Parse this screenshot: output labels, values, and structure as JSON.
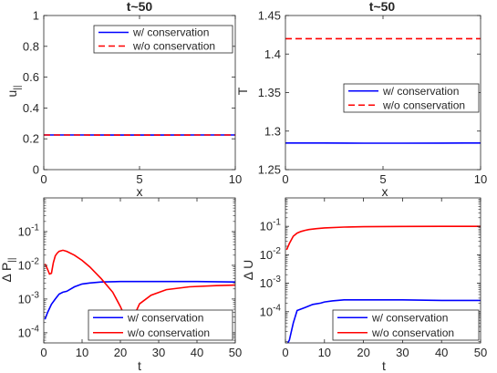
{
  "chart_data": [
    {
      "type": "line",
      "title": "t~50",
      "xlabel": "x",
      "ylabel": "u",
      "ylabel_sub": "||",
      "xlim": [
        0,
        10
      ],
      "ylim": [
        0,
        1
      ],
      "yscale": "linear",
      "xticks": [
        0,
        5,
        10
      ],
      "yticks": [
        0,
        0.2,
        0.4,
        0.6,
        0.8,
        1
      ],
      "xtick_labels": [
        "0",
        "5",
        "10"
      ],
      "ytick_labels": [
        "0",
        "0.2",
        "0.4",
        "0.6",
        "0.8",
        "1"
      ],
      "legend_position": "top-right",
      "series": [
        {
          "name": "w/ conservation",
          "color": "#0000ff",
          "dash": "solid",
          "x": [
            0,
            2,
            4,
            6,
            8,
            10
          ],
          "y": [
            0.225,
            0.225,
            0.224,
            0.224,
            0.225,
            0.225
          ]
        },
        {
          "name": "w/o conservation",
          "color": "#ff0000",
          "dash": "dashed",
          "x": [
            0,
            2,
            4,
            6,
            8,
            10
          ],
          "y": [
            0.225,
            0.225,
            0.224,
            0.224,
            0.225,
            0.225
          ]
        }
      ]
    },
    {
      "type": "line",
      "title": "t~50",
      "xlabel": "x",
      "ylabel": "T",
      "ylabel_sub": "",
      "xlim": [
        0,
        10
      ],
      "ylim": [
        1.25,
        1.45
      ],
      "yscale": "linear",
      "xticks": [
        0,
        5,
        10
      ],
      "yticks": [
        1.25,
        1.3,
        1.35,
        1.4,
        1.45
      ],
      "xtick_labels": [
        "0",
        "5",
        "10"
      ],
      "ytick_labels": [
        "1.25",
        "1.3",
        "1.35",
        "1.4",
        "1.45"
      ],
      "legend_position": "middle-right",
      "series": [
        {
          "name": "w/ conservation",
          "color": "#0000ff",
          "dash": "solid",
          "x": [
            0,
            2,
            4,
            6,
            8,
            10
          ],
          "y": [
            1.2845,
            1.2845,
            1.2843,
            1.2843,
            1.2844,
            1.2845
          ]
        },
        {
          "name": "w/o conservation",
          "color": "#ff0000",
          "dash": "dashed",
          "x": [
            0,
            2,
            4,
            6,
            8,
            10
          ],
          "y": [
            1.42,
            1.42,
            1.42,
            1.42,
            1.42,
            1.42
          ]
        }
      ]
    },
    {
      "type": "line",
      "title": "",
      "xlabel": "t",
      "ylabel": "Δ P",
      "ylabel_sub": "||",
      "xlim": [
        0,
        50
      ],
      "ylim": [
        5e-05,
        1
      ],
      "yscale": "log",
      "xticks": [
        0,
        10,
        20,
        30,
        40,
        50
      ],
      "yticks": [
        0.0001,
        0.001,
        0.01,
        0.1
      ],
      "xtick_labels": [
        "0",
        "10",
        "20",
        "30",
        "40",
        "50"
      ],
      "ytick_labels": [
        "10-4",
        "10-3",
        "10-2",
        "10-1"
      ],
      "legend_position": "bottom-right",
      "series": [
        {
          "name": "w/ conservation",
          "color": "#0000ff",
          "dash": "solid",
          "x": [
            0.3,
            1,
            2,
            3,
            4,
            5,
            6,
            8,
            10,
            12,
            15,
            20,
            25,
            30,
            40,
            50
          ],
          "y": [
            0.00025,
            0.0004,
            0.0007,
            0.001,
            0.0014,
            0.0016,
            0.0017,
            0.0023,
            0.0028,
            0.003,
            0.0032,
            0.0033,
            0.0033,
            0.0033,
            0.0033,
            0.0032
          ]
        },
        {
          "name": "w/o conservation",
          "color": "#ff0000",
          "dash": "solid",
          "x": [
            0.3,
            0.8,
            1.5,
            2,
            2.5,
            3,
            3.5,
            4,
            5,
            6,
            8,
            10,
            12,
            15,
            18,
            20,
            21.5,
            22.5,
            23.5,
            25,
            28,
            32,
            38,
            45,
            50
          ],
          "y": [
            0.011,
            0.0085,
            0.0055,
            0.0058,
            0.012,
            0.019,
            0.023,
            0.026,
            0.028,
            0.026,
            0.02,
            0.014,
            0.009,
            0.004,
            0.0016,
            0.0006,
            0.00025,
            0.00014,
            0.0003,
            0.00072,
            0.0013,
            0.0019,
            0.0023,
            0.0025,
            0.0026
          ]
        }
      ]
    },
    {
      "type": "line",
      "title": "",
      "xlabel": "t",
      "ylabel": "Δ U",
      "ylabel_sub": "",
      "xlim": [
        0,
        50
      ],
      "ylim": [
        8e-06,
        1
      ],
      "yscale": "log",
      "xticks": [
        0,
        10,
        20,
        30,
        40,
        50
      ],
      "yticks": [
        0.0001,
        0.001,
        0.01,
        0.1
      ],
      "xtick_labels": [
        "0",
        "10",
        "20",
        "30",
        "40",
        "50"
      ],
      "ytick_labels": [
        "10-4",
        "10-3",
        "10-2",
        "10-1"
      ],
      "legend_position": "bottom-right",
      "series": [
        {
          "name": "w/ conservation",
          "color": "#0000ff",
          "dash": "solid",
          "x": [
            0.6,
            1,
            2,
            3,
            5,
            7,
            9,
            10,
            12,
            15,
            20,
            30,
            40,
            50
          ],
          "y": [
            8e-06,
            1e-05,
            4e-05,
            0.00011,
            0.00014,
            0.00018,
            0.0002,
            0.00022,
            0.00024,
            0.00026,
            0.00026,
            0.00026,
            0.00025,
            0.00025
          ]
        },
        {
          "name": "w/o conservation",
          "color": "#ff0000",
          "dash": "solid",
          "x": [
            0.3,
            1,
            2,
            3,
            4,
            5,
            6,
            8,
            10,
            15,
            20,
            30,
            40,
            50
          ],
          "y": [
            0.015,
            0.025,
            0.045,
            0.058,
            0.066,
            0.072,
            0.077,
            0.083,
            0.088,
            0.094,
            0.097,
            0.099,
            0.1,
            0.1
          ]
        }
      ]
    }
  ]
}
